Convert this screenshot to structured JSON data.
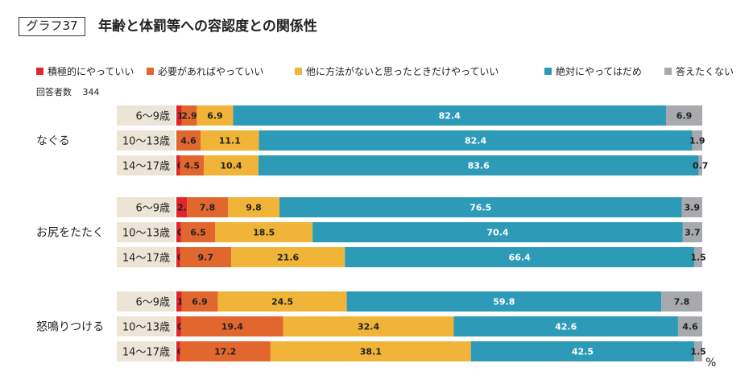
{
  "header": {
    "graph_label": "グラフ37",
    "title": "年齢と体罰等への容認度との関係性"
  },
  "respondents": {
    "label": "回答者数",
    "count": "344"
  },
  "unit_label": "%",
  "colors": [
    "#e0252d",
    "#e2672e",
    "#f0b538",
    "#2d9bb7",
    "#a8a9ac"
  ],
  "chart_data": {
    "type": "bar",
    "orientation": "horizontal",
    "stacked": true,
    "percent_stacked": true,
    "legend_position": "top",
    "legend": [
      "積極的にやっていい",
      "必要があればやっていい",
      "他に方法がないと思ったときだけやっていい",
      "絶対にやってはだめ",
      "答えたくない"
    ],
    "groups": [
      {
        "name": "なぐる",
        "rows": [
          {
            "age": "6～9歳",
            "values": [
              1.0,
              2.9,
              6.9,
              82.4,
              6.9
            ]
          },
          {
            "age": "10～13歳",
            "values": [
              0,
              4.6,
              11.1,
              82.4,
              1.9
            ]
          },
          {
            "age": "14～17歳",
            "values": [
              0.7,
              4.5,
              10.4,
              83.6,
              0.7
            ]
          }
        ]
      },
      {
        "name": "お尻をたたく",
        "rows": [
          {
            "age": "6～9歳",
            "values": [
              2.0,
              7.8,
              9.8,
              76.5,
              3.9
            ]
          },
          {
            "age": "10～13歳",
            "values": [
              0.9,
              6.5,
              18.5,
              70.4,
              3.7
            ]
          },
          {
            "age": "14～17歳",
            "values": [
              0.7,
              9.7,
              21.6,
              66.4,
              1.5
            ]
          }
        ]
      },
      {
        "name": "怒鳴りつける",
        "rows": [
          {
            "age": "6～9歳",
            "values": [
              1.0,
              6.9,
              24.5,
              59.8,
              7.8
            ]
          },
          {
            "age": "10～13歳",
            "values": [
              0.9,
              19.4,
              32.4,
              42.6,
              4.6
            ]
          },
          {
            "age": "14～17歳",
            "values": [
              0.7,
              17.2,
              38.1,
              42.5,
              1.5
            ]
          }
        ]
      }
    ]
  }
}
